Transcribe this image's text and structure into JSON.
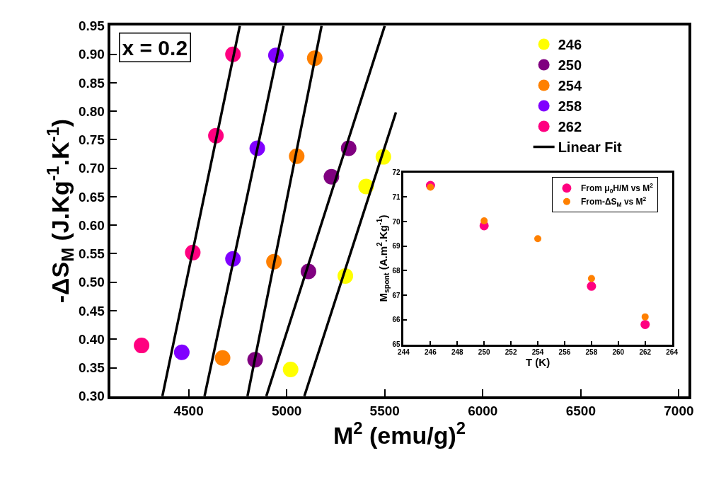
{
  "chart_data": [
    {
      "type": "scatter",
      "xlabel": "M$^{2}$ (emu/g)$^{2}$",
      "ylabel": "-ΔS$_{M}$ (J.Kg$^{-1}$.K$^{-1}$)",
      "xlim": [
        4100,
        7050
      ],
      "xticks": [
        4500,
        5000,
        5500,
        6000,
        6500,
        7000
      ],
      "ylim": [
        0.3,
        0.95
      ],
      "yticks": [
        {
          "value": 0.3,
          "label": "0.30"
        },
        {
          "value": 0.35,
          "label": "0.35"
        },
        {
          "value": 0.4,
          "label": "0.40"
        },
        {
          "value": 0.45,
          "label": "0.45"
        },
        {
          "value": 0.5,
          "label": "0.50"
        },
        {
          "value": 0.55,
          "label": "0.55"
        },
        {
          "value": 0.6,
          "label": "0.60"
        },
        {
          "value": 0.65,
          "label": "0.65"
        },
        {
          "value": 0.7,
          "label": "0.70"
        },
        {
          "value": 0.75,
          "label": "0.75"
        },
        {
          "value": 0.8,
          "label": "0.80"
        },
        {
          "value": 0.85,
          "label": "0.85"
        },
        {
          "value": 0.9,
          "label": "0.90"
        },
        {
          "value": 0.95,
          "label": "0.95"
        }
      ],
      "annotations": [
        "x = 0.2"
      ],
      "marker": "circle",
      "legend": "top right",
      "series": [
        {
          "name": "246",
          "color": "#ffff00",
          "x": [
            5020,
            5299,
            5405,
            5493
          ],
          "values": [
            0.347,
            0.511,
            0.668,
            0.72
          ]
        },
        {
          "name": "250",
          "color": "#800080",
          "x": [
            4839,
            5111,
            5228,
            5316
          ],
          "values": [
            0.364,
            0.519,
            0.685,
            0.735
          ]
        },
        {
          "name": "254",
          "color": "#ff8000",
          "x": [
            4673,
            4935,
            5051,
            5143
          ],
          "values": [
            0.367,
            0.536,
            0.721,
            0.893
          ]
        },
        {
          "name": "258",
          "color": "#8000ff",
          "x": [
            4465,
            4726,
            4850,
            4945
          ],
          "values": [
            0.377,
            0.541,
            0.735,
            0.898
          ]
        },
        {
          "name": "262",
          "color": "#ff0080",
          "x": [
            4260,
            4521,
            4639,
            4726
          ],
          "values": [
            0.389,
            0.552,
            0.757,
            0.9
          ]
        },
        {
          "name": "Linear Fit",
          "type": "line",
          "marker": "none",
          "color": "#000000",
          "x": [
            4366,
            4761
          ],
          "values": [
            0.3,
            0.95
          ]
        },
        {
          "type": "line",
          "marker": "none",
          "color": "#000000",
          "x": [
            4581,
            4984
          ],
          "values": [
            0.3,
            0.95
          ]
        },
        {
          "type": "line",
          "marker": "none",
          "color": "#000000",
          "x": [
            4800,
            5178
          ],
          "values": [
            0.3,
            0.95
          ]
        },
        {
          "type": "line",
          "marker": "none",
          "color": "#000000",
          "x": [
            4896,
            5500
          ],
          "values": [
            0.3,
            0.95
          ]
        },
        {
          "type": "line",
          "marker": "none",
          "color": "#000000",
          "x": [
            5090,
            5557
          ],
          "values": [
            0.3,
            0.798
          ]
        }
      ]
    },
    {
      "type": "scatter",
      "xlabel": "T (K)",
      "ylabel": "M$_{spont}$ (A.m$^{2}$.Kg$^{-1}$)",
      "xlim": [
        244,
        264
      ],
      "xticks": [
        244,
        246,
        248,
        250,
        252,
        254,
        256,
        258,
        260,
        262,
        264
      ],
      "ylim": [
        65,
        72
      ],
      "yticks": [
        65,
        66,
        67,
        68,
        69,
        70,
        71,
        72
      ],
      "marker": "circle",
      "legend": "top right",
      "series": [
        {
          "name": "From μ$_{0}$H/M vs M$^{2}$",
          "color": "#ff0080",
          "x": [
            246,
            250,
            254,
            258,
            262
          ],
          "values": [
            71.47,
            69.83,
            null,
            67.37,
            65.81
          ]
        },
        {
          "name": "From-ΔS$_{M}$ vs M$^{2}$",
          "color": "#ff8000",
          "x": [
            246,
            250,
            254,
            258,
            262
          ],
          "values": [
            71.4,
            70.03,
            69.3,
            67.68,
            66.12
          ]
        }
      ]
    }
  ]
}
